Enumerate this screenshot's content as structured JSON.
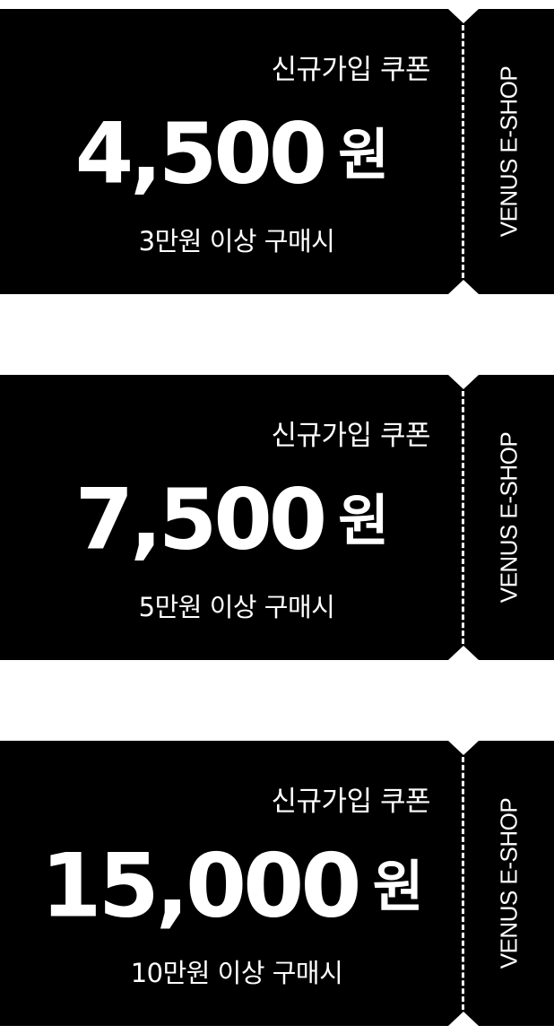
{
  "coupons": [
    {
      "label": "신규가입 쿠폰",
      "amount": "4,500",
      "currency": "원",
      "condition": "3만원 이상 구매시",
      "brand": "VENUS E-SHOP"
    },
    {
      "label": "신규가입 쿠폰",
      "amount": "7,500",
      "currency": "원",
      "condition": "5만원 이상 구매시",
      "brand": "VENUS E-SHOP"
    },
    {
      "label": "신규가입 쿠폰",
      "amount": "15,000",
      "currency": "원",
      "condition": "10만원 이상 구매시",
      "brand": "VENUS E-SHOP"
    }
  ],
  "colors": {
    "coupon_background": "#000000",
    "text": "#ffffff",
    "page_background": "#ffffff"
  }
}
